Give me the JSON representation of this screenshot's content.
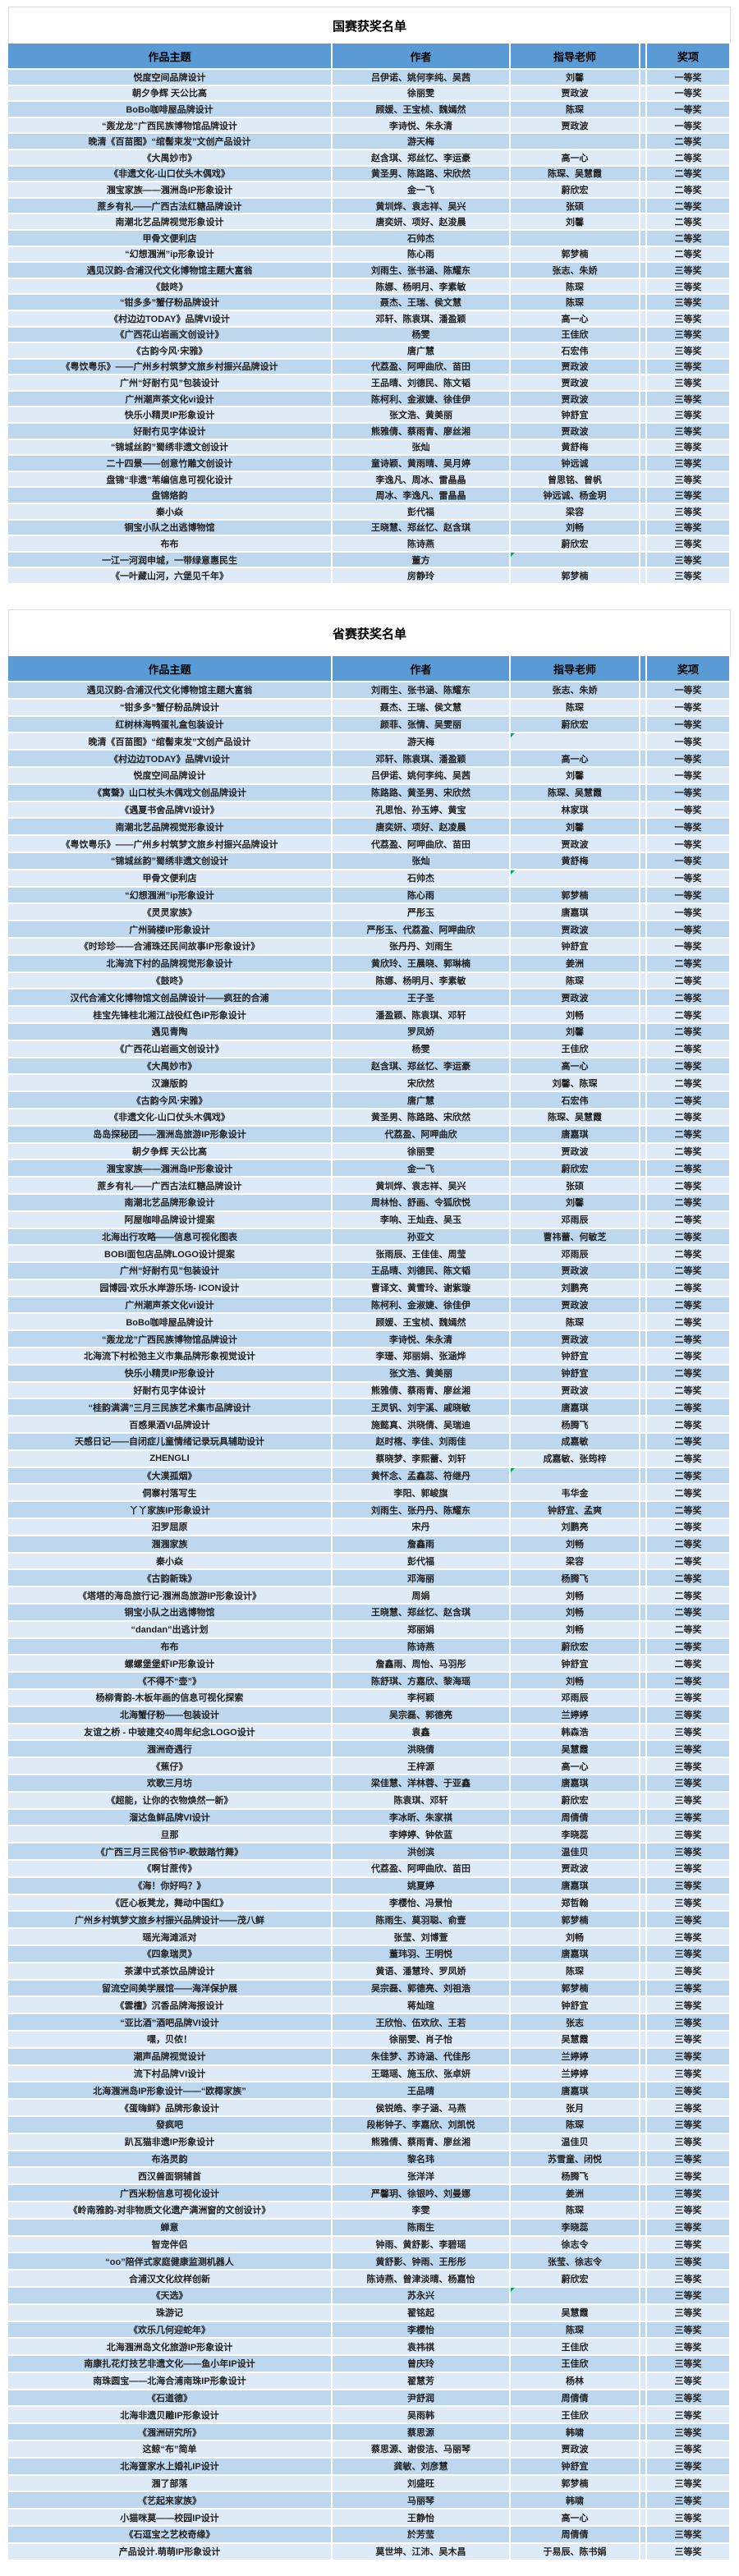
{
  "colors": {
    "header_bg": "#5B9BD5",
    "row_odd": "#BDD7EE",
    "row_even": "#DEEBF7",
    "grid_white": "#FFFFFF",
    "title_text": "#000000",
    "cell_text": "#1F1F1F",
    "note_marker": "#00B050",
    "outer_border": "#D9D9D9"
  },
  "tables": [
    {
      "title": "国赛获奖名单",
      "headers": [
        "作品主题",
        "作者",
        "指导老师",
        "奖项"
      ],
      "note_rows": [
        30
      ],
      "rows": [
        [
          "悦度空间品牌设计",
          "吕伊诺、姚何李纯、吴茜",
          "刘馨",
          "一等奖"
        ],
        [
          "朝夕争辉 天公比高",
          "徐丽雯",
          "贾政波",
          "一等奖"
        ],
        [
          "BoBo咖啡屋品牌设计",
          "顾媛、王宝桢、魏嫣然",
          "陈琛",
          "一等奖"
        ],
        [
          "“轰龙龙”广西民族博物馆品牌设计",
          "李诗悦、朱永清",
          "贾政波",
          "一等奖"
        ],
        [
          "晚清《百苗图》“绾髻束发”文创产品设计",
          "游天梅",
          "",
          "二等奖"
        ],
        [
          "《大禺妙市》",
          "赵含琪、郑丝忆、李运豪",
          "高一心",
          "二等奖"
        ],
        [
          "《非遗文化-山口仗头木偶戏》",
          "黄圣男、陈路路、宋欣然",
          "陈琛、吴慧霞",
          "二等奖"
        ],
        [
          "涠宝家族——涠洲岛IP形象设计",
          "金一飞",
          "蔚欣宏",
          "二等奖"
        ],
        [
          "蔗乡有礼——广西古法红糖品牌设计",
          "黄圳烨、袁志祥、吴兴",
          "张硕",
          "二等奖"
        ],
        [
          "南潮北艺品牌视觉形象设计",
          "唐奕妍、项好、赵浚晨",
          "刘馨",
          "二等奖"
        ],
        [
          "甲骨文便利店",
          "石帅杰",
          "",
          "二等奖"
        ],
        [
          "“幻想涠洲”ip形象设计",
          "陈心雨",
          "郭梦楠",
          "二等奖"
        ],
        [
          "遇见汉韵-合浦汉代文化博物馆主题大富翁",
          "刘雨生、张书涵、陈耀东",
          "张志、朱娇",
          "三等奖"
        ],
        [
          "《鼓咚》",
          "陈娜、杨明月、李素敏",
          "陈琛",
          "三等奖"
        ],
        [
          "“钳多多”蟹仔粉品牌设计",
          "聂杰、王瑞、侯文慧",
          "陈琛",
          "三等奖"
        ],
        [
          "《村边边TODAY》品牌VI设计",
          "邓轩、陈袁琪、潘盈颖",
          "高一心",
          "三等奖"
        ],
        [
          "《广西花山岩画文创设计》",
          "杨雯",
          "王佳欣",
          "三等奖"
        ],
        [
          "《古韵今风·宋雅》",
          "唐广慧",
          "石宏伟",
          "三等奖"
        ],
        [
          "《粤饮粤乐》——广州乡村筑梦文旅乡村振兴品牌设计",
          "代荔盈、阿呷曲欣、苗田",
          "贾政波",
          "三等奖"
        ],
        [
          "广州“好耐冇见”包装设计",
          "王品晴、刘德民、陈文韬",
          "贾政波",
          "三等奖"
        ],
        [
          "广州潮声茶文化vi设计",
          "陈柯利、金淑婕、徐佳伊",
          "贾政波",
          "三等奖"
        ],
        [
          "快乐小精灵IP形象设计",
          "张文浩、黄美丽",
          "钟舒宜",
          "三等奖"
        ],
        [
          "好耐冇见字体设计",
          "熊雅倩、蔡雨青、廖丝湘",
          "贾政波",
          "三等奖"
        ],
        [
          "“锦城丝韵”蜀绣非遗文创设计",
          "张灿",
          "黄舒梅",
          "三等奖"
        ],
        [
          "二十四景——创意竹雕文创设计",
          "童诗颖、黄雨晴、吴月婷",
          "钟远诚",
          "三等奖"
        ],
        [
          "盘锦“非遗”苇编信息可视化设计",
          "李逸凡、周冰、雷晶晶",
          "曾思铭、曾帆",
          "三等奖"
        ],
        [
          "盘锦烙韵",
          "周冰、李逸凡、雷晶晶",
          "钟远诚、杨金玥",
          "三等奖"
        ],
        [
          "秦小焱",
          "彭代福",
          "梁容",
          "三等奖"
        ],
        [
          "铜宝小队之出逃博物馆",
          "王晓慧、郑丝忆、赵含琪",
          "刘畅",
          "三等奖"
        ],
        [
          "布布",
          "陈诗燕",
          "蔚欣宏",
          "三等奖"
        ],
        [
          "一江一河润申城，一带绿意惠民生",
          "董方",
          "",
          "三等奖"
        ],
        [
          "《一叶藏山河，六堡见千年》",
          "房静玲",
          "郭梦楠",
          "三等奖"
        ]
      ]
    },
    {
      "title": "省赛获奖名单",
      "headers": [
        "作品主题",
        "作者",
        "指导老师",
        "奖项"
      ],
      "note_rows": [
        3,
        11,
        46,
        94
      ],
      "rows": [
        [
          "遇见汉韵-合浦汉代文化博物馆主题大富翁",
          "刘雨生、张书涵、陈耀东",
          "张志、朱娇",
          "一等奖"
        ],
        [
          "“钳多多”蟹仔粉品牌设计",
          "聂杰、王瑞、侯文慧",
          "陈琛",
          "一等奖"
        ],
        [
          "红树林海鸭蛋礼盒包装设计",
          "颜菲、张情、吴雯丽",
          "蔚欣宏",
          "一等奖"
        ],
        [
          "晚清《百苗图》“绾髻束发”文创产品设计",
          "游天梅",
          "",
          "一等奖"
        ],
        [
          "《村边边TODAY》品牌VI设计",
          "邓轩、陈袁琪、潘盈颖",
          "高一心",
          "一等奖"
        ],
        [
          "悦度空间品牌设计",
          "吕伊诺、姚何李纯、吴茜",
          "刘馨",
          "一等奖"
        ],
        [
          "《寓聲》山口杖头木偶戏文创品牌设计",
          "陈路路、黄圣男、宋欣然",
          "陈琛、吴慧霞",
          "一等奖"
        ],
        [
          "《遇夏书舍品牌VI设计》",
          "孔思怡、孙玉婷、黄宝",
          "林家琪",
          "一等奖"
        ],
        [
          "南潮北艺品牌视觉形象设计",
          "唐奕妍、项好、赵凌晨",
          "刘馨",
          "一等奖"
        ],
        [
          "《粤饮粤乐》——广州乡村筑梦文旅乡村振兴品牌设计",
          "代荔盈、阿呷曲欣、苗田",
          "贾政波",
          "一等奖"
        ],
        [
          "“锦城丝韵”蜀绣非遗文创设计",
          "张灿",
          "黄舒梅",
          "一等奖"
        ],
        [
          "甲骨文便利店",
          "石帅杰",
          "",
          "一等奖"
        ],
        [
          "“幻想涠洲”ip形象设计",
          "陈心雨",
          "郭梦楠",
          "一等奖"
        ],
        [
          "《灵灵家族》",
          "严彤玉",
          "唐嘉琪",
          "一等奖"
        ],
        [
          "广州骑楼IP形象设计",
          "严彤玉、代荔盈、阿呷曲欣",
          "贾政波",
          "一等奖"
        ],
        [
          "《时珍珍——合浦珠还民间故事IP形象设计》",
          "张丹丹、刘雨生",
          "钟舒宜",
          "一等奖"
        ],
        [
          "北海流下村的品牌视觉形象设计",
          "黄欣玲、王晨晓、郭琳楠",
          "姜洲",
          "二等奖"
        ],
        [
          "《鼓咚》",
          "陈娜、杨明月、李素敏",
          "陈琛",
          "二等奖"
        ],
        [
          "汉代合浦文化博物馆文创品牌设计——疯狂的合浦",
          "王子圣",
          "贾政波",
          "二等奖"
        ],
        [
          "桂宝先锋桂北湘江战役红色iP形象设计",
          "潘盈颖、陈袁琪、邓轩",
          "刘畅",
          "二等奖"
        ],
        [
          "遇见青陶",
          "罗凤娇",
          "刘馨",
          "二等奖"
        ],
        [
          "《广西花山岩画文创设计》",
          "杨雯",
          "王佳欣",
          "二等奖"
        ],
        [
          "《大禺妙市》",
          "赵含琪、郑丝忆、李运豪",
          "高一心",
          "二等奖"
        ],
        [
          "汉濂版韵",
          "宋欣然",
          "刘馨、陈琛",
          "二等奖"
        ],
        [
          "《古韵今风·宋雅》",
          "唐广慧",
          "石宏伟",
          "二等奖"
        ],
        [
          "《非遗文化-山口仗头木偶戏》",
          "黄圣男、陈路路、宋欣然",
          "陈琛、吴慧霞",
          "二等奖"
        ],
        [
          "岛岛探秘团——涠洲岛旅游IP形象设计",
          "代荔盈、阿呷曲欣",
          "唐嘉琪",
          "二等奖"
        ],
        [
          "朝夕争辉 天公比高",
          "徐丽雯",
          "贾政波",
          "二等奖"
        ],
        [
          "涠宝家族——涠洲岛IP形象设计",
          "金一飞",
          "蔚欣宏",
          "二等奖"
        ],
        [
          "蔗乡有礼——广西古法红糖品牌设计",
          "黄圳烨、袁志祥、吴兴",
          "张硕",
          "二等奖"
        ],
        [
          "南潮北艺品牌形象设计",
          "周林怡、舒画、令狐欣悦",
          "刘馨",
          "二等奖"
        ],
        [
          "阿屋咖啡品牌设计提案",
          "李响、王灿垚、吴玉",
          "邓雨辰",
          "二等奖"
        ],
        [
          "北海出行攻略——信息可视化图表",
          "孙亚文",
          "曹祎蕾、何敏芝",
          "二等奖"
        ],
        [
          "BOBI面包店品牌LOGO设计提案",
          "张雨辰、王佳佳、周莹",
          "邓雨辰",
          "二等奖"
        ],
        [
          "广州“好耐冇见”包装设计",
          "王品晴、刘德民、陈文韬",
          "贾政波",
          "二等奖"
        ],
        [
          "园博园·欢乐水岸游乐场- ICON设计",
          "曹译文、黄雪玲、谢紫璇",
          "刘鹏亮",
          "二等奖"
        ],
        [
          "广州潮声茶文化vi设计",
          "陈柯利、金淑婕、徐佳伊",
          "贾政波",
          "二等奖"
        ],
        [
          "BoBo咖啡屋品牌设计",
          "顾媛、王宝桢、魏嫣然",
          "陈琛",
          "二等奖"
        ],
        [
          "“轰龙龙”广西民族博物馆品牌设计",
          "李诗悦、朱永清",
          "贾政波",
          "二等奖"
        ],
        [
          "北海流下村松弛主义市集品牌形象视觉设计",
          "李珊、郑丽娟、张涵烨",
          "钟舒宜",
          "二等奖"
        ],
        [
          "快乐小精灵IP形象设计",
          "张文浩、黄美丽",
          "钟舒宜",
          "二等奖"
        ],
        [
          "好耐冇见字体设计",
          "熊雅倩、蔡雨青、廖丝湘",
          "贾政波",
          "二等奖"
        ],
        [
          "“桂韵满满”三月三民族艺术集市品牌设计",
          "王灵钒、刘宇溪、戚晓敏",
          "唐嘉琪",
          "二等奖"
        ],
        [
          "百感果酒VI品牌设计",
          "施懿真、洪晓倩、吴瑞迪",
          "杨腾飞",
          "二等奖"
        ],
        [
          "天感日记——自闭症儿童情绪记录玩具辅助设计",
          "赵时楁、李佳、刘雨佳",
          "成嘉敏",
          "二等奖"
        ],
        [
          "ZHENGLI",
          "蔡晓梦、李熙蕾、刘轩",
          "成嘉敏、张筠梓",
          "二等奖"
        ],
        [
          "《大漠孤烟》",
          "黄怀念、孟鑫蕊、符继丹",
          "",
          "二等奖"
        ],
        [
          "侗寨村落写生",
          "李阳、郭峻旗",
          "韦华金",
          "二等奖"
        ],
        [
          "丫丫家族IP形象设计",
          "刘雨生、张丹丹、陈耀东",
          "钟舒宜、孟爽",
          "二等奖"
        ],
        [
          "汨罗屈原",
          "宋丹",
          "刘鹏亮",
          "二等奖"
        ],
        [
          "涠涠家族",
          "詹鑫雨",
          "刘畅",
          "二等奖"
        ],
        [
          "秦小焱",
          "彭代福",
          "梁容",
          "二等奖"
        ],
        [
          "《古韵新珠》",
          "邓海丽",
          "杨腾飞",
          "二等奖"
        ],
        [
          "《塔塔的海岛旅行记-涠洲岛旅游IP形象设计》",
          "周娟",
          "刘畅",
          "二等奖"
        ],
        [
          "铜宝小队之出逃博物馆",
          "王晓慧、郑丝忆、赵含琪",
          "刘畅",
          "二等奖"
        ],
        [
          "“dandan”出逃计划",
          "郑丽娟",
          "刘畅",
          "二等奖"
        ],
        [
          "布布",
          "陈诗燕",
          "蔚欣宏",
          "二等奖"
        ],
        [
          "螺螺堡堡虾IP形象设计",
          "詹鑫雨、周怡、马羽彤",
          "钟舒宜",
          "二等奖"
        ],
        [
          "《不得不“壶”》",
          "陈舒琪、方嘉欣、黎海瑶",
          "刘畅",
          "二等奖"
        ],
        [
          "杨柳青韵-木板年画的信息可视化探索",
          "李柯颖",
          "邓雨辰",
          "三等奖"
        ],
        [
          "北海蟹仔粉——包装设计",
          "吴宗磊、郭德亮",
          "兰婷婷",
          "三等奖"
        ],
        [
          "友谊之桥 - 中玻建交40周年纪念LOGO设计",
          "袁鑫",
          "韩森浩",
          "三等奖"
        ],
        [
          "涠洲奇遇行",
          "洪晓倩",
          "吴慧霞",
          "三等奖"
        ],
        [
          "《蕉仔》",
          "王梓源",
          "高一心",
          "三等奖"
        ],
        [
          "欢歌三月坊",
          "梁佳慧、洋林蓉、于亚鑫",
          "唐嘉琪",
          "三等奖"
        ],
        [
          "《超能，让你的衣物焕然一新》",
          "陈袁琪、邓轩",
          "蔚欣宏",
          "三等奖"
        ],
        [
          "溜达鱼鲜品牌VI设计",
          "李冰昕、朱家祺",
          "周倩倩",
          "三等奖"
        ],
        [
          "旦那",
          "李婷婷、钟依蓝",
          "李晓蕊",
          "三等奖"
        ],
        [
          "《广西三月三民俗节IP-歌鼓踏竹舞》",
          "洪创滨",
          "温佳贝",
          "三等奖"
        ],
        [
          "《啊甘蔗传》",
          "代荔盈、阿呷曲欣、苗田",
          "贾政波",
          "三等奖"
        ],
        [
          "《海！你好吗？》",
          "姚夏婷",
          "唐嘉琪",
          "三等奖"
        ],
        [
          "《匠心板凳龙，舞动中国红》",
          "李樱怡、冯景怡",
          "郑哲翰",
          "三等奖"
        ],
        [
          "广州乡村筑梦文旅乡村振兴品牌设计——茂八鲜",
          "陈雨生、莫羽聪、俞壹",
          "郭梦楠",
          "三等奖"
        ],
        [
          "瑶光海滩派对",
          "张莹、刘博萱",
          "刘畅",
          "三等奖"
        ],
        [
          "《四象瑞灵》",
          "董玮羽、王明悦",
          "唐嘉琪",
          "三等奖"
        ],
        [
          "茶漾中式茶饮品牌设计",
          "黄语、潘慧玲、罗凤娇",
          "陈琛",
          "三等奖"
        ],
        [
          "留流空间美学展馆——海洋保护展",
          "吴宗磊、郭德亮、刘祖浩",
          "郭梦楠",
          "三等奖"
        ],
        [
          "《雲檀》沉香品牌海报设计",
          "蒋灿瑄",
          "钟舒宜",
          "三等奖"
        ],
        [
          "“亚比酒”酒吧品牌VI设计",
          "王欣怡、伍欢欣、王若",
          "张志",
          "三等奖"
        ],
        [
          "嘿，贝侬！",
          "徐丽雯、肖子怡",
          "吴慧霞",
          "三等奖"
        ],
        [
          "潮声品牌视觉设计",
          "朱佳梦、苏诗涵、代佳彤",
          "兰婷婷",
          "三等奖"
        ],
        [
          "流下村品牌VI设计",
          "王璐瑶、施玉欣、张卓妍",
          "兰婷婷",
          "三等奖"
        ],
        [
          "北海涠洲岛IP形象设计——“欧椰家族”",
          "王品晴",
          "唐嘉琪",
          "三等奖"
        ],
        [
          "《蛋嗨鲜》品牌形象设计",
          "侯锐皓、李子涵、马燕",
          "张月",
          "三等奖"
        ],
        [
          "發疯吧",
          "段彬钟子、李嘉欣、刘凯悦",
          "陈琛",
          "三等奖"
        ],
        [
          "趴瓦猫非遗IP形象设计",
          "熊雅倩、蔡雨青、廖丝湘",
          "温佳贝",
          "三等奖"
        ],
        [
          "布洛灵韵",
          "黎名玮",
          "苏雪童、闭悦",
          "三等奖"
        ],
        [
          "西汉兽面铜辅首",
          "张洋洋",
          "杨腾飞",
          "三等奖"
        ],
        [
          "广西米粉信息可视化设计",
          "严馨玥、徐银吟、刘曼娜",
          "姜洲",
          "三等奖"
        ],
        [
          "《岭南雅韵-对非物质文化遗产满洲窗的文创设计》",
          "李雯",
          "陈琛",
          "三等奖"
        ],
        [
          "蝉意",
          "陈雨生",
          "李晓蕊",
          "三等奖"
        ],
        [
          "智宠伴侣",
          "钟雨、黄舒影、李碧瑶",
          "徐志令",
          "三等奖"
        ],
        [
          "“oo”陪伴式家庭健康监测机器人",
          "黄舒影、钟雨、王彤彤",
          "张莹、徐志令",
          "三等奖"
        ],
        [
          "合浦汉文化纹样创新",
          "陈诗燕、曾津淡晴、杨嘉怡",
          "蔚欣宏",
          "三等奖"
        ],
        [
          "《天选》",
          "苏永兴",
          "",
          "三等奖"
        ],
        [
          "珠游记",
          "翟铭起",
          "吴慧霞",
          "三等奖"
        ],
        [
          "《欢乐几何迎蛇年》",
          "李樱怡",
          "陈琛",
          "三等奖"
        ],
        [
          "北海涠洲岛文化旅游IP形象设计",
          "袁祎祺",
          "王佳欣",
          "三等奖"
        ],
        [
          "南康扎花灯技艺非遗文化——鱼小年IP设计",
          "曾庆玲",
          "王佳欣",
          "三等奖"
        ],
        [
          "南珠圆宝——北海合浦南珠IP形象设计",
          "翟慧芳",
          "杨林",
          "三等奖"
        ],
        [
          "《石道德》",
          "尹舒润",
          "周倩倩",
          "三等奖"
        ],
        [
          "北海非遗贝雕IP形象设计",
          "吴雨韩",
          "王佳欣",
          "三等奖"
        ],
        [
          "《涠洲研究所》",
          "蔡思源",
          "韩啸",
          "三等奖"
        ],
        [
          "这鲸“布”简单",
          "蔡思源、谢俊洁、马丽琴",
          "贾政波",
          "三等奖"
        ],
        [
          "北海疍家水上婚礼IP设计",
          "龚敏、刘彦慧",
          "钟舒宜",
          "三等奖"
        ],
        [
          "涠了部落",
          "刘盛旺",
          "郭梦楠",
          "三等奖"
        ],
        [
          "《艺起来家族》",
          "马丽琴",
          "韩啸",
          "三等奖"
        ],
        [
          "小猫咪莫——校园IP设计",
          "王静怡",
          "高一心",
          "三等奖"
        ],
        [
          "《石逗宝之艺校奇缘》",
          "於芳莹",
          "周倩倩",
          "三等奖"
        ],
        [
          "产品设计.萌萌IP形象设计",
          "莫世坤、江沛、吴木昌",
          "于易辰、陈书娟",
          "三等奖"
        ]
      ]
    }
  ]
}
